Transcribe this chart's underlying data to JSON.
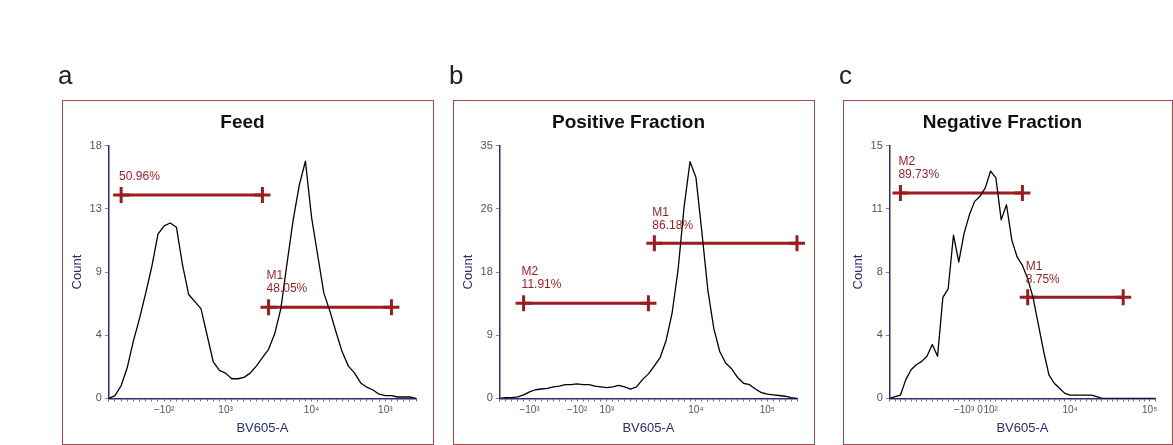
{
  "chart_data": [
    {
      "type": "line",
      "title": "Feed",
      "xlabel": "BV605-A",
      "ylabel": "Count",
      "annotations": [
        "a"
      ],
      "categories": [
        null,
        null,
        null,
        null,
        null,
        null,
        null,
        null,
        null,
        "−10²",
        null,
        null,
        null,
        null,
        null,
        null,
        null,
        null,
        null,
        "10³",
        null,
        null,
        null,
        null,
        null,
        null,
        null,
        null,
        null,
        null,
        null,
        null,
        null,
        "10⁴",
        null,
        null,
        null,
        null,
        null,
        null,
        null,
        null,
        null,
        null,
        null,
        "10³",
        null,
        null,
        null,
        null,
        null
      ],
      "ylim": [
        0,
        18
      ],
      "yticks": [
        0,
        {
          "value": 4.5,
          "label": "4"
        },
        9,
        {
          "value": 13.5,
          "label": "13"
        },
        18
      ],
      "series": [
        {
          "color": "#000000",
          "values": [
            0,
            0.2,
            0.9,
            2.2,
            4.1,
            5.7,
            7.5,
            9.4,
            11.7,
            12.3,
            12.5,
            12.2,
            9.5,
            7.4,
            6.9,
            6.4,
            4.5,
            2.6,
            2.0,
            1.8,
            1.4,
            1.4,
            1.5,
            1.8,
            2.3,
            2.9,
            3.5,
            4.6,
            6.4,
            9.6,
            12.7,
            15.2,
            16.9,
            12.9,
            10.2,
            7.5,
            6.2,
            4.7,
            3.3,
            2.3,
            1.8,
            1.1,
            0.8,
            0.6,
            0.3,
            0.2,
            0.2,
            0.1,
            0.1,
            0.1,
            0
          ]
        },
        {
          "type": "line",
          "marker": "cross",
          "name": "50.96%",
          "color": "#9b1b1f",
          "values": [
            null,
            null,
            14.5,
            null,
            null,
            null,
            null,
            null,
            null,
            null,
            null,
            null,
            null,
            null,
            null,
            null,
            null,
            null,
            null,
            null,
            null,
            null,
            null,
            null,
            null,
            14.5,
            null,
            null,
            null,
            null,
            null,
            null,
            null,
            null,
            null,
            null,
            null,
            null,
            null,
            null,
            null,
            null,
            null,
            null,
            null,
            null,
            null,
            null,
            null,
            null,
            null
          ]
        },
        {
          "type": "line",
          "marker": "cross",
          "name": "M1\n48.05%",
          "color": "#9b1b1f",
          "values": [
            null,
            null,
            null,
            null,
            null,
            null,
            null,
            null,
            null,
            null,
            null,
            null,
            null,
            null,
            null,
            null,
            null,
            null,
            null,
            null,
            null,
            null,
            null,
            null,
            null,
            null,
            6.5,
            null,
            null,
            null,
            null,
            null,
            null,
            null,
            null,
            null,
            null,
            null,
            null,
            null,
            null,
            null,
            null,
            null,
            null,
            null,
            6.5,
            null,
            null,
            null,
            null
          ]
        }
      ]
    },
    {
      "type": "line",
      "title": "Positive Fraction",
      "xlabel": "BV605-A",
      "ylabel": "Count",
      "annotations": [
        "b"
      ],
      "categories": [
        null,
        null,
        null,
        null,
        null,
        "−10³",
        null,
        null,
        null,
        null,
        null,
        null,
        null,
        "−10²",
        null,
        null,
        null,
        null,
        "10³",
        null,
        null,
        null,
        null,
        null,
        null,
        null,
        null,
        null,
        null,
        null,
        null,
        null,
        null,
        "10⁴",
        null,
        null,
        null,
        null,
        null,
        null,
        null,
        null,
        null,
        null,
        null,
        "10⁵",
        null,
        null,
        null,
        null,
        null
      ],
      "ylim": [
        0,
        35
      ],
      "yticks": [
        0,
        {
          "value": 8.75,
          "label": "9"
        },
        {
          "value": 17.5,
          "label": "18"
        },
        {
          "value": 26.25,
          "label": "26"
        },
        35
      ],
      "series": [
        {
          "color": "#000000",
          "values": [
            0,
            0.1,
            0.1,
            0.2,
            0.5,
            0.9,
            1.2,
            1.3,
            1.4,
            1.6,
            1.7,
            1.9,
            1.9,
            2.0,
            1.9,
            1.9,
            1.7,
            1.6,
            1.5,
            1.6,
            1.8,
            1.6,
            1.3,
            1.6,
            2.6,
            3.4,
            4.5,
            5.7,
            8.1,
            11.9,
            17.9,
            26.5,
            32.8,
            30.6,
            23.0,
            15.0,
            9.7,
            6.5,
            4.9,
            4.1,
            2.9,
            2.1,
            1.9,
            1.3,
            0.8,
            0.6,
            0.5,
            0.4,
            0.3,
            0.1,
            0
          ]
        },
        {
          "type": "line",
          "marker": "cross",
          "name": "M2\n11.91%",
          "color": "#9b1b1f",
          "values": [
            null,
            null,
            null,
            null,
            13.2,
            null,
            null,
            null,
            null,
            null,
            null,
            null,
            null,
            null,
            null,
            null,
            null,
            null,
            null,
            null,
            null,
            null,
            null,
            null,
            null,
            13.2,
            null,
            null,
            null,
            null,
            null,
            null,
            null,
            null,
            null,
            null,
            null,
            null,
            null,
            null,
            null,
            null,
            null,
            null,
            null,
            null,
            null,
            null,
            null,
            null,
            null
          ]
        },
        {
          "type": "line",
          "marker": "cross",
          "name": "M1\n86.18%",
          "color": "#9b1b1f",
          "values": [
            null,
            null,
            null,
            null,
            null,
            null,
            null,
            null,
            null,
            null,
            null,
            null,
            null,
            null,
            null,
            null,
            null,
            null,
            null,
            null,
            null,
            null,
            null,
            null,
            null,
            null,
            21.5,
            null,
            null,
            null,
            null,
            null,
            null,
            null,
            null,
            null,
            null,
            null,
            null,
            null,
            null,
            null,
            null,
            null,
            null,
            null,
            null,
            null,
            null,
            null,
            21.5
          ]
        }
      ]
    },
    {
      "type": "line",
      "title": "Negative Fraction",
      "xlabel": "BV605-A",
      "ylabel": "Count",
      "annotations": [
        "c"
      ],
      "categories": [
        null,
        null,
        null,
        null,
        null,
        null,
        null,
        null,
        null,
        null,
        null,
        null,
        null,
        null,
        "−10³",
        null,
        null,
        "0",
        null,
        "10²",
        null,
        null,
        null,
        null,
        null,
        null,
        null,
        null,
        null,
        null,
        null,
        null,
        null,
        null,
        "10⁴",
        null,
        null,
        null,
        null,
        null,
        null,
        null,
        null,
        null,
        null,
        null,
        null,
        null,
        null,
        "10⁵",
        null
      ],
      "ylim": [
        0,
        15
      ],
      "yticks": [
        0,
        {
          "value": 3.75,
          "label": "4"
        },
        {
          "value": 7.5,
          "label": "8"
        },
        {
          "value": 11.25,
          "label": "11"
        },
        15
      ],
      "series": [
        {
          "color": "#000000",
          "values": [
            0,
            0.1,
            0.2,
            1.1,
            1.7,
            2.0,
            2.2,
            2.5,
            3.2,
            2.5,
            6.0,
            6.5,
            9.7,
            8.1,
            9.8,
            10.9,
            11.7,
            12.0,
            12.5,
            13.5,
            13.1,
            10.6,
            11.5,
            9.4,
            8.4,
            7.9,
            7.1,
            6.0,
            4.4,
            2.8,
            1.4,
            0.9,
            0.6,
            0.3,
            0.2,
            0.2,
            0.2,
            0.2,
            0.2,
            0.1,
            0,
            0,
            0,
            0,
            0,
            0,
            0,
            0,
            0,
            0,
            0
          ]
        },
        {
          "type": "line",
          "marker": "cross",
          "name": "M2\n89.73%",
          "color": "#9b1b1f",
          "values": [
            null,
            null,
            12.2,
            null,
            null,
            null,
            null,
            null,
            null,
            null,
            null,
            null,
            null,
            null,
            null,
            null,
            null,
            null,
            null,
            null,
            null,
            null,
            null,
            null,
            null,
            12.2,
            null,
            null,
            null,
            null,
            null,
            null,
            null,
            null,
            null,
            null,
            null,
            null,
            null,
            null,
            null,
            null,
            null,
            null,
            null,
            null,
            null,
            null,
            null,
            null,
            null
          ]
        },
        {
          "type": "line",
          "marker": "cross",
          "name": "M1\n8.75%",
          "color": "#9b1b1f",
          "values": [
            null,
            null,
            null,
            null,
            null,
            null,
            null,
            null,
            null,
            null,
            null,
            null,
            null,
            null,
            null,
            null,
            null,
            null,
            null,
            null,
            null,
            null,
            null,
            null,
            null,
            null,
            6,
            null,
            null,
            null,
            null,
            null,
            null,
            null,
            null,
            null,
            null,
            null,
            null,
            null,
            null,
            null,
            null,
            null,
            6,
            null,
            null,
            null,
            null,
            null,
            null
          ]
        }
      ]
    }
  ]
}
